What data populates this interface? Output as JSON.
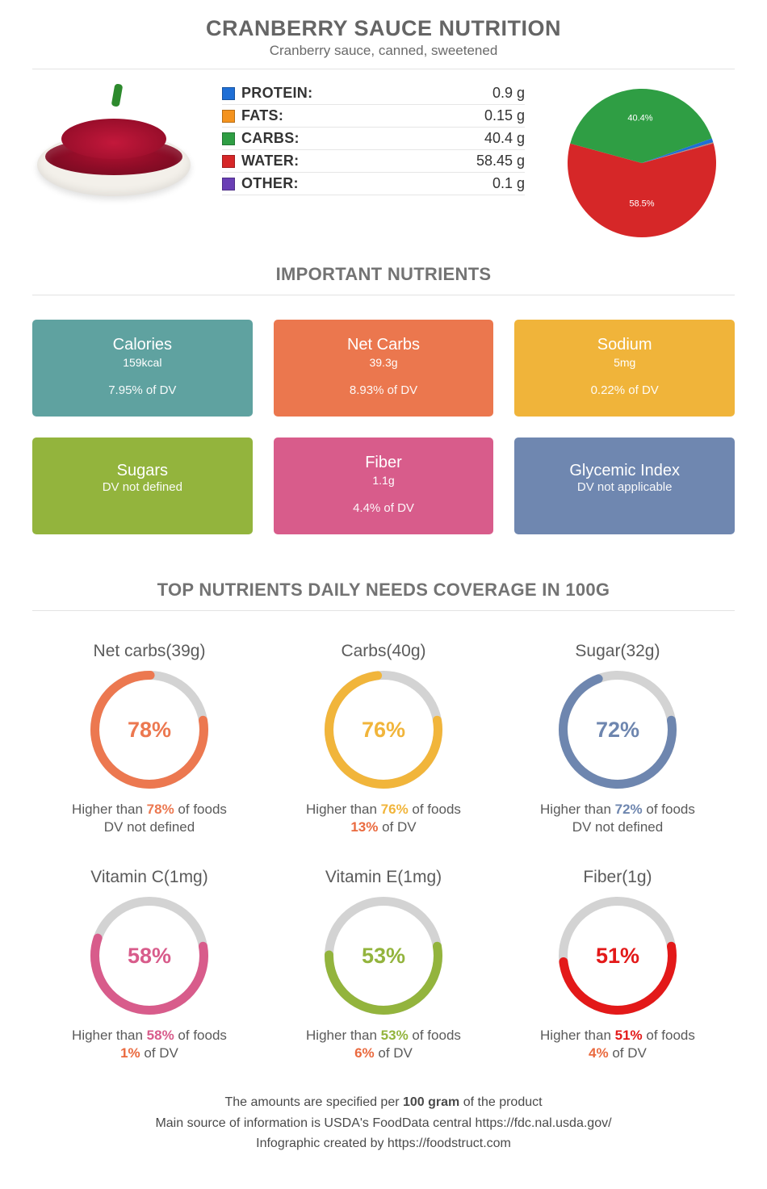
{
  "header": {
    "title": "CRANBERRY SAUCE NUTRITION",
    "subtitle": "Cranberry sauce, canned, sweetened"
  },
  "macros": [
    {
      "label": "PROTEIN:",
      "value": "0.9 g",
      "color": "#1f6fd6"
    },
    {
      "label": "FATS:",
      "value": "0.15 g",
      "color": "#f4931e"
    },
    {
      "label": "CARBS:",
      "value": "40.4 g",
      "color": "#2f9e44"
    },
    {
      "label": "WATER:",
      "value": "58.45 g",
      "color": "#d62728"
    },
    {
      "label": "OTHER:",
      "value": "0.1 g",
      "color": "#6a3fb5"
    }
  ],
  "pie": {
    "slices": [
      {
        "pct": 58.5,
        "color": "#d62728",
        "label": "58.5%",
        "label_r": 0.55
      },
      {
        "pct": 40.4,
        "color": "#2f9e44",
        "label": "40.4%",
        "label_r": 0.6
      },
      {
        "pct": 0.9,
        "color": "#1f6fd6",
        "label": "",
        "label_r": 0.6
      },
      {
        "pct": 0.15,
        "color": "#f4931e",
        "label": "",
        "label_r": 0.6
      },
      {
        "pct": 0.1,
        "color": "#6a3fb5",
        "label": "",
        "label_r": 0.6
      }
    ],
    "start_angle_slice0_center_deg": 90,
    "label_color": "#ffffff",
    "label_fontsize": 11
  },
  "important_title": "IMPORTANT NUTRIENTS",
  "cards": [
    {
      "title": "Calories",
      "value": "159kcal",
      "dv": "7.95% of DV",
      "bg": "#5fa2a0"
    },
    {
      "title": "Net Carbs",
      "value": "39.3g",
      "dv": "8.93% of DV",
      "bg": "#eb774e"
    },
    {
      "title": "Sodium",
      "value": "5mg",
      "dv": "0.22% of DV",
      "bg": "#f0b43a"
    },
    {
      "title": "Sugars",
      "value": "",
      "dv": "DV not defined",
      "bg": "#93b43d"
    },
    {
      "title": "Fiber",
      "value": "1.1g",
      "dv": "4.4% of DV",
      "bg": "#d85c8b"
    },
    {
      "title": "Glycemic Index",
      "value": "",
      "dv": "DV not applicable",
      "bg": "#6f87b0"
    }
  ],
  "coverage_title": "TOP NUTRIENTS DAILY NEEDS COVERAGE IN 100G",
  "donuts": [
    {
      "label": "Net carbs(39g)",
      "pct": 78,
      "color": "#ec7850",
      "sub1_pre": "Higher than ",
      "sub1_b": "78%",
      "sub1_post": " of foods",
      "sub2": "DV not defined",
      "sub2_b": ""
    },
    {
      "label": "Carbs(40g)",
      "pct": 76,
      "color": "#f1b53b",
      "sub1_pre": "Higher than ",
      "sub1_b": "76%",
      "sub1_post": " of foods",
      "sub2": " of DV",
      "sub2_b": "13%"
    },
    {
      "label": "Sugar(32g)",
      "pct": 72,
      "color": "#6e86af",
      "sub1_pre": "Higher than ",
      "sub1_b": "72%",
      "sub1_post": " of foods",
      "sub2": "DV not defined",
      "sub2_b": ""
    },
    {
      "label": "Vitamin C(1mg)",
      "pct": 58,
      "color": "#d85c8b",
      "sub1_pre": "Higher than ",
      "sub1_b": "58%",
      "sub1_post": " of foods",
      "sub2": " of DV",
      "sub2_b": "1%"
    },
    {
      "label": "Vitamin E(1mg)",
      "pct": 53,
      "color": "#93b43d",
      "sub1_pre": "Higher than ",
      "sub1_b": "53%",
      "sub1_post": " of foods",
      "sub2": " of DV",
      "sub2_b": "6%"
    },
    {
      "label": "Fiber(1g)",
      "pct": 51,
      "color": "#e31919",
      "sub1_pre": "Higher than ",
      "sub1_b": "51%",
      "sub1_post": " of foods",
      "sub2": " of DV",
      "sub2_b": "4%"
    }
  ],
  "donut_style": {
    "size": 150,
    "stroke_width": 11,
    "track_color": "#d3d3d3",
    "start_angle_deg": 80
  },
  "footer": {
    "line1_pre": "The amounts are specified per ",
    "line1_b": "100 gram",
    "line1_post": " of the product",
    "line2": "Main source of information is USDA's FoodData central https://fdc.nal.usda.gov/",
    "line3": "Infographic created by https://foodstruct.com"
  }
}
